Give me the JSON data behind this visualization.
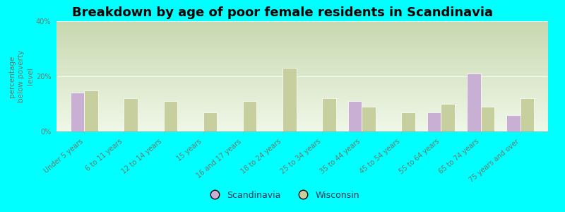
{
  "title": "Breakdown by age of poor female residents in Scandinavia",
  "ylabel": "percentage\nbelow poverty\nlevel",
  "categories": [
    "Under 5 years",
    "6 to 11 years",
    "12 to 14 years",
    "15 years",
    "16 and 17 years",
    "18 to 24 years",
    "25 to 34 years",
    "35 to 44 years",
    "45 to 54 years",
    "55 to 64 years",
    "65 to 74 years",
    "75 years and over"
  ],
  "scandinavia": [
    14.0,
    0.0,
    0.0,
    0.0,
    0.0,
    0.0,
    0.0,
    11.0,
    0.0,
    7.0,
    21.0,
    6.0
  ],
  "wisconsin": [
    15.0,
    12.0,
    11.0,
    7.0,
    11.0,
    23.0,
    12.0,
    9.0,
    7.0,
    10.0,
    9.0,
    12.0
  ],
  "scandinavia_color": "#c9afd4",
  "wisconsin_color": "#c8cf9e",
  "background_color": "#00ffff",
  "plot_bg_color": "#dce8c8",
  "ylim": [
    0,
    40
  ],
  "yticks": [
    0,
    20,
    40
  ],
  "ytick_labels": [
    "0%",
    "20%",
    "40%"
  ],
  "title_fontsize": 13,
  "axis_label_fontsize": 7.5,
  "tick_label_fontsize": 7,
  "legend_fontsize": 9,
  "bar_width": 0.35,
  "tick_color": "#6b7a6b",
  "label_color": "#6b7a6b"
}
